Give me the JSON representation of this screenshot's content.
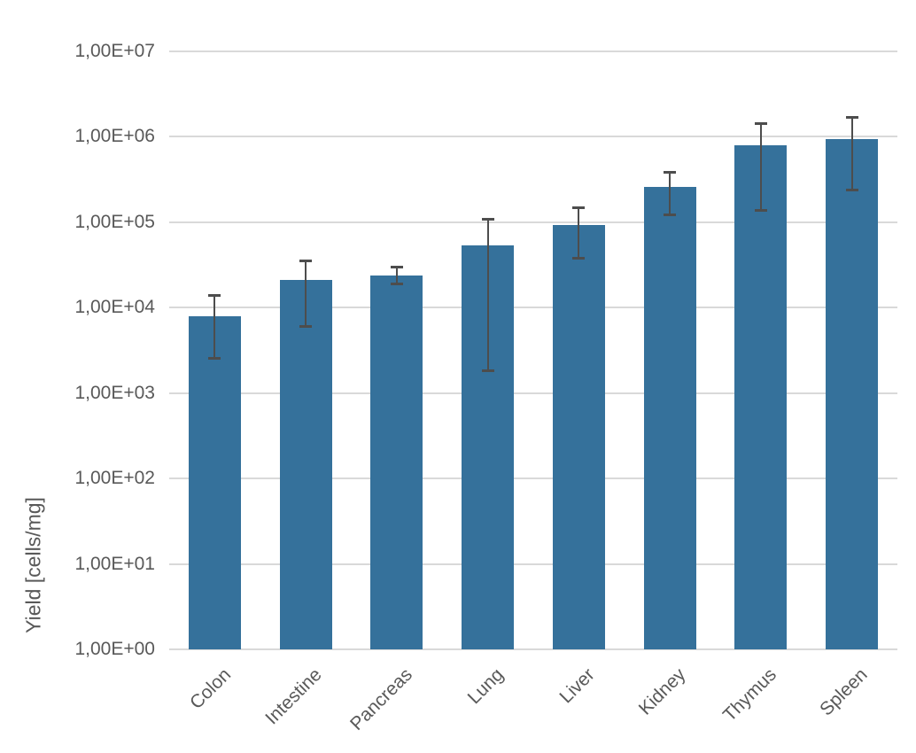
{
  "chart_data": {
    "type": "bar",
    "title": "",
    "xlabel": "",
    "ylabel": "Yield [cells/mg]",
    "y_scale": "log10",
    "ylim": [
      1,
      10000000
    ],
    "grid": "horizontal",
    "legend": "none",
    "y_ticks": [
      {
        "value": 1,
        "label": "1,00E+00"
      },
      {
        "value": 10,
        "label": "1,00E+01"
      },
      {
        "value": 100,
        "label": "1,00E+02"
      },
      {
        "value": 1000,
        "label": "1,00E+03"
      },
      {
        "value": 10000,
        "label": "1,00E+04"
      },
      {
        "value": 100000,
        "label": "1,00E+05"
      },
      {
        "value": 1000000,
        "label": "1,00E+06"
      },
      {
        "value": 10000000,
        "label": "1,00E+07"
      }
    ],
    "categories": [
      "Colon",
      "Intestine",
      "Pancreas",
      "Lung",
      "Liver",
      "Kidney",
      "Thymus",
      "Spleen"
    ],
    "values": [
      8000,
      21000,
      24000,
      54000,
      92000,
      260000,
      790000,
      950000
    ],
    "error_bars": {
      "high": [
        14000,
        36000,
        30000,
        110000,
        150000,
        390000,
        1450000,
        1700000
      ],
      "low": [
        2600,
        6100,
        19000,
        1850,
        38000,
        125000,
        140000,
        240000
      ]
    },
    "colors": {
      "bar": "#35719B",
      "error": "#4d4d4d",
      "grid": "#d9d9d9",
      "text": "#595959"
    }
  }
}
